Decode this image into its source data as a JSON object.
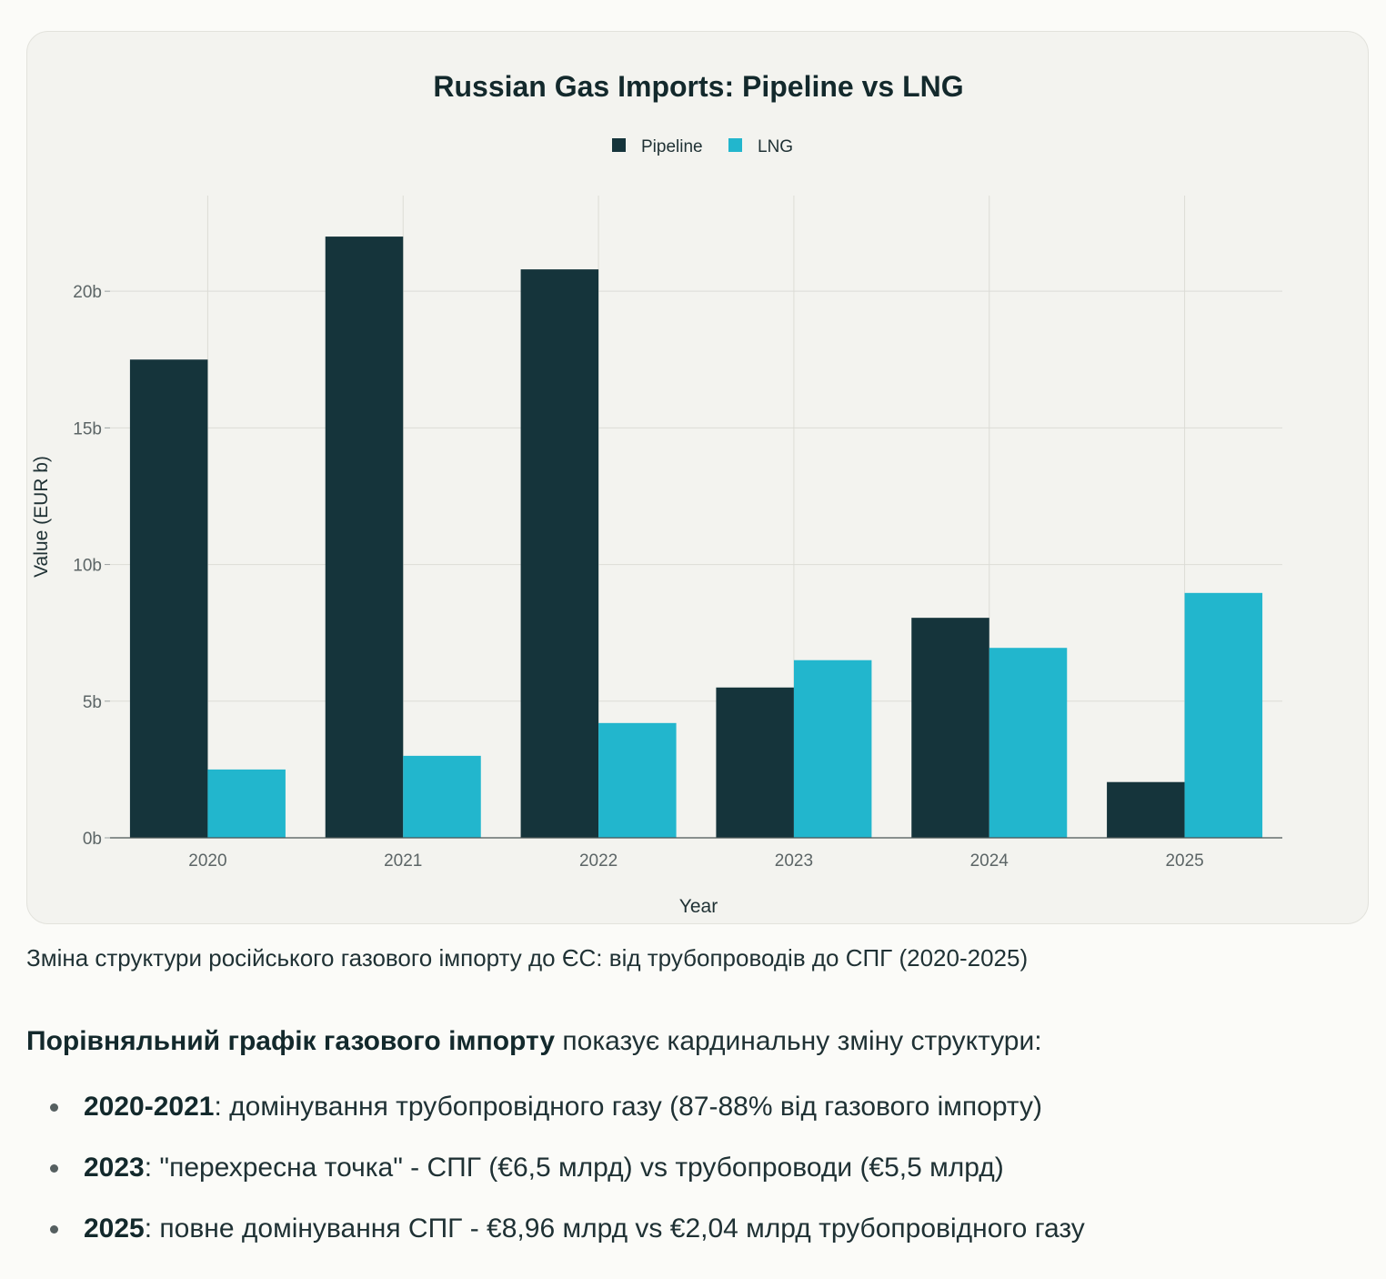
{
  "chart_data": {
    "type": "bar",
    "title": "Russian Gas Imports: Pipeline vs LNG",
    "xlabel": "Year",
    "ylabel": "Value (EUR b)",
    "categories": [
      "2020",
      "2021",
      "2022",
      "2023",
      "2024",
      "2025"
    ],
    "series": [
      {
        "name": "Pipeline",
        "color": "#15343b",
        "values": [
          17.5,
          22.0,
          20.8,
          5.5,
          8.05,
          2.04
        ]
      },
      {
        "name": "LNG",
        "color": "#22b6cd",
        "values": [
          2.5,
          3.0,
          4.2,
          6.5,
          6.95,
          8.96
        ]
      }
    ],
    "ylim": [
      0,
      23.5
    ],
    "yticks": [
      0,
      5,
      10,
      15,
      20
    ],
    "ytick_labels": [
      "0b",
      "5b",
      "10b",
      "15b",
      "20b"
    ],
    "grid": true,
    "legend_position": "top-center"
  },
  "caption": "Зміна структури російського газового імпорту до ЄС: від трубопроводів до СПГ (2020-2025)",
  "intro": {
    "bold": "Порівняльний графік газового імпорту",
    "rest": " показує кардинальну зміну структури:"
  },
  "bullets": [
    {
      "year": "2020-2021",
      "text": ": домінування трубопровідного газу (87-88% від газового імпорту)"
    },
    {
      "year": "2023",
      "text": ": \"перехресна точка\" - СПГ (€6,5 млрд) vs трубопроводи (€5,5 млрд)"
    },
    {
      "year": "2025",
      "text": ": повне домінування СПГ - €8,96 млрд vs €2,04 млрд трубопровідного газу"
    }
  ]
}
